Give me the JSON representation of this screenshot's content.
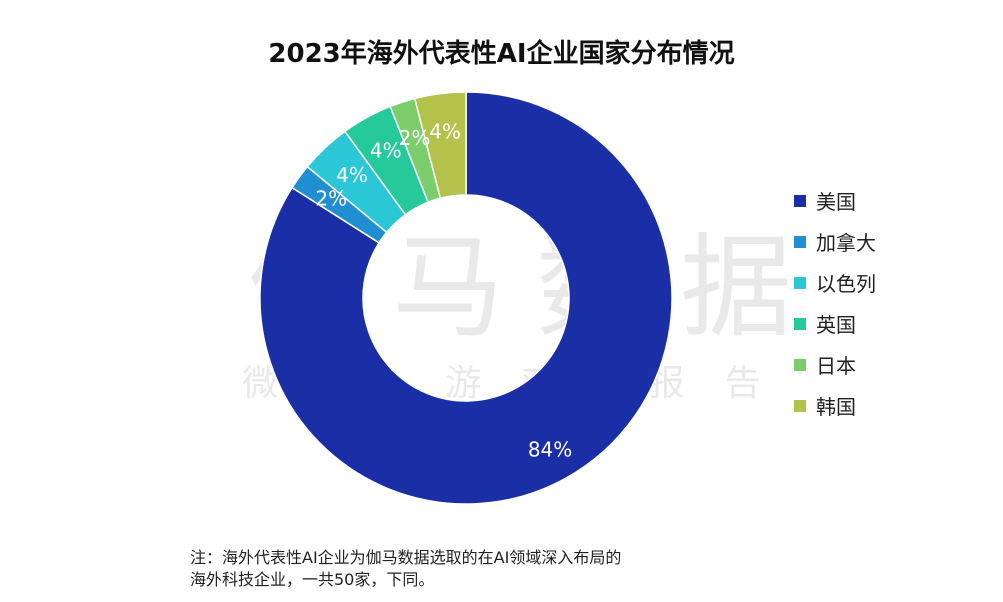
{
  "chart_data": {
    "type": "pie",
    "variant": "donut",
    "title": "2023年海外代表性AI企业国家分布情况",
    "categories": [
      "美国",
      "加拿大",
      "以色列",
      "英国",
      "日本",
      "韩国"
    ],
    "values": [
      84,
      2,
      4,
      4,
      2,
      4
    ],
    "value_labels": [
      "84%",
      "2%",
      "4%",
      "4%",
      "2%",
      "4%"
    ],
    "colors": [
      "#1a2ea6",
      "#1f8fd1",
      "#2cc7d6",
      "#26c99a",
      "#7ccd6b",
      "#b2c24a"
    ],
    "legend_position": "right"
  },
  "watermark": {
    "main": "伽马数据",
    "sub": "微信 游戏 报告"
  },
  "note": {
    "line1": "注：海外代表性AI企业为伽马数据选取的在AI领域深入布局的",
    "line2": "海外科技企业，一共50家，下同。"
  }
}
